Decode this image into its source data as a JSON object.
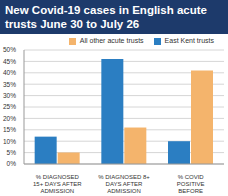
{
  "chart_data": {
    "type": "bar",
    "title": "New Covid-19 cases in English acute trusts June 30 to July 26",
    "categories": [
      "% DIAGNOSED 15+ DAYS AFTER ADMISSION",
      "% DIAGNOSED 8+ DAYS AFTER ADMISSION",
      "% COVID POSITIVE BEFORE ADMISSION"
    ],
    "series": [
      {
        "name": "East Kent trusts",
        "color": "#2b7ec2",
        "values": [
          12,
          46,
          10
        ]
      },
      {
        "name": "All other acute trusts",
        "color": "#f4b46c",
        "values": [
          5,
          16,
          41
        ]
      }
    ],
    "ylim": [
      0,
      50
    ],
    "yticks": [
      {
        "value": 0,
        "label": "0%"
      },
      {
        "value": 5,
        "label": "5%"
      },
      {
        "value": 10,
        "label": "10%"
      },
      {
        "value": 15,
        "label": "15%"
      },
      {
        "value": 20,
        "label": "20%"
      },
      {
        "value": 25,
        "label": "25%"
      },
      {
        "value": 30,
        "label": "30%"
      },
      {
        "value": 35,
        "label": "35%"
      },
      {
        "value": 40,
        "label": "40%"
      },
      {
        "value": 45,
        "label": "45%"
      },
      {
        "value": 50,
        "label": "50%"
      }
    ],
    "grid": true,
    "legend": "top right"
  }
}
